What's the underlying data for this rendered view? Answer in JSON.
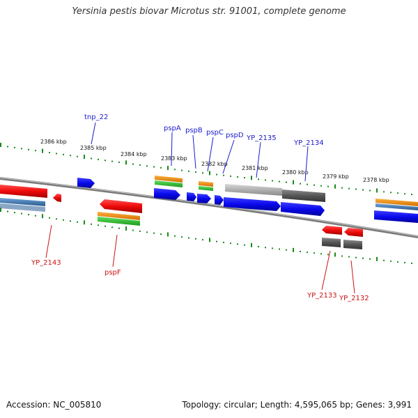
{
  "title": "Yersinia pestis biovar Microtus str. 91001, complete genome",
  "accession": "Accession: NC_005810",
  "summary": "Topology: circular; Length: 4,595,065 bp; Genes: 3,991",
  "kbp_ticks": [
    "2386 kbp",
    "2385 kbp",
    "2384 kbp",
    "2383 kbp",
    "2382 kbp",
    "2381 kbp",
    "2380 kbp",
    "2379 kbp",
    "2378 kbp"
  ],
  "forward_labels": [
    "tnp_22",
    "pspA",
    "pspB",
    "pspC",
    "pspD",
    "YP_2135",
    "YP_2134"
  ],
  "reverse_labels": [
    "YP_2143",
    "pspF",
    "YP_2133",
    "YP_2132"
  ],
  "colors": {
    "forward_label": "#1a1acc",
    "reverse_label": "#cc1111",
    "gene_blue": "#0a0aee",
    "gene_red": "#ee0a0a",
    "gene_gray": "#555555",
    "gene_lightgray": "#b0b0b0",
    "track_orange": "#f08a00",
    "track_green": "#2bbf2b",
    "track_steelblue": "#4a7fb5",
    "tick_green": "#1a8a1a",
    "backbone": "#7a7a7a"
  }
}
